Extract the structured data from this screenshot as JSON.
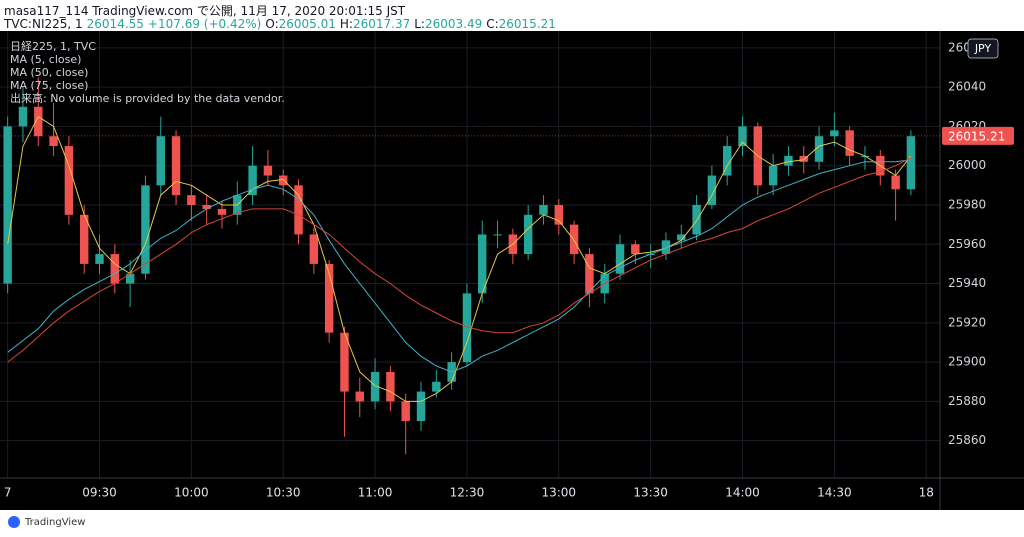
{
  "header": {
    "publisher": "masa117_114 TradingView.com で公開, 11月 17, 2020 20:01:15 JST",
    "symbol": "TVC:NI225, 1",
    "last": 26014.55,
    "change": "+107.69 (+0.42%)",
    "o_label": "O:",
    "open": 26005.01,
    "h_label": "H:",
    "high": 26017.37,
    "l_label": "L:",
    "low": 26003.49,
    "c_label": "C:",
    "close": 26015.21
  },
  "chart_data": {
    "type": "candlestick",
    "symbol_label": "日経225, 1, TVC",
    "volume_note": "出来高: No volume is provided by the data vendor.",
    "currency": "JPY",
    "up_color": "#26a69a",
    "down_color": "#ef5350",
    "open": [
      25940,
      26020,
      26030,
      26015,
      26010,
      25975,
      25950,
      25955,
      25940,
      25945,
      25990,
      26015,
      25985,
      25980,
      25978,
      25975,
      25985,
      26000,
      25995,
      25990,
      25965,
      25950,
      25915,
      25885,
      25880,
      25895,
      25880,
      25870,
      25885,
      25890,
      25900,
      25935,
      25965,
      25965,
      25955,
      25975,
      25980,
      25970,
      25955,
      25935,
      25945,
      25960,
      25955,
      25955,
      25962,
      25965,
      25980,
      25995,
      26010,
      26020,
      25990,
      26000,
      26005,
      26002,
      26015,
      26018,
      26005,
      26005,
      25995,
      25988
    ],
    "high": [
      26025,
      26040,
      26045,
      26032,
      26015,
      25980,
      25965,
      25960,
      25952,
      25995,
      26025,
      26018,
      25990,
      25985,
      25982,
      25992,
      26010,
      26008,
      25998,
      25993,
      25968,
      25952,
      25918,
      25892,
      25902,
      25898,
      25884,
      25890,
      25896,
      25905,
      25940,
      25972,
      25972,
      25968,
      25980,
      25985,
      25983,
      25972,
      25958,
      25950,
      25965,
      25962,
      25960,
      25966,
      25970,
      25985,
      26000,
      26015,
      26025,
      26022,
      26006,
      26010,
      26010,
      26020,
      26027,
      26020,
      26010,
      26008,
      25998,
      26018
    ],
    "low": [
      25935,
      26012,
      26010,
      26005,
      25970,
      25945,
      25945,
      25935,
      25928,
      25942,
      25985,
      25980,
      25972,
      25970,
      25968,
      25970,
      25980,
      25990,
      25985,
      25960,
      25945,
      25910,
      25862,
      25872,
      25876,
      25875,
      25853,
      25865,
      25882,
      25886,
      25898,
      25930,
      25958,
      25950,
      25952,
      25970,
      25965,
      25950,
      25928,
      25930,
      25942,
      25950,
      25948,
      25952,
      25958,
      25962,
      25978,
      25990,
      26005,
      25985,
      25985,
      25995,
      25996,
      25998,
      26010,
      26000,
      25998,
      25990,
      25972,
      25985
    ],
    "close": [
      26020,
      26030,
      26015,
      26010,
      25975,
      25950,
      25955,
      25940,
      25945,
      25990,
      26015,
      25985,
      25980,
      25978,
      25975,
      25985,
      26000,
      25995,
      25990,
      25965,
      25950,
      25915,
      25885,
      25880,
      25895,
      25880,
      25870,
      25885,
      25890,
      25900,
      25935,
      25965,
      25965,
      25955,
      25975,
      25980,
      25970,
      25955,
      25935,
      25945,
      25960,
      25955,
      25955,
      25962,
      25965,
      25980,
      25995,
      26010,
      26020,
      25990,
      26000,
      26005,
      26002,
      26015,
      26018,
      26005,
      26005,
      25995,
      25988,
      26015
    ],
    "series": [
      {
        "name": "MA (5, close)",
        "color": "#e8c547",
        "values": [
          25960,
          26010,
          26025,
          26020,
          26000,
          25975,
          25958,
          25950,
          25945,
          25960,
          25985,
          25992,
          25990,
          25985,
          25980,
          25980,
          25988,
          25992,
          25993,
          25985,
          25970,
          25945,
          25915,
          25895,
          25888,
          25885,
          25880,
          25880,
          25884,
          25890,
          25910,
          25935,
          25955,
          25960,
          25968,
          25975,
          25972,
          25962,
          25948,
          25945,
          25950,
          25955,
          25956,
          25958,
          25962,
          25972,
          25985,
          26000,
          26012,
          26005,
          26000,
          26002,
          26003,
          26010,
          26012,
          26008,
          26005,
          26000,
          25995,
          26005
        ]
      },
      {
        "name": "MA (50, close)",
        "color": "#3fb1c6",
        "values": [
          25905,
          25911,
          25917,
          25926,
          25932,
          25937,
          25941,
          25945,
          25950,
          25957,
          25963,
          25967,
          25973,
          25978,
          25982,
          25985,
          25988,
          25990,
          25988,
          25983,
          25975,
          25962,
          25950,
          25940,
          25930,
          25920,
          25910,
          25903,
          25898,
          25895,
          25898,
          25903,
          25906,
          25910,
          25914,
          25918,
          25922,
          25928,
          25936,
          25944,
          25948,
          25952,
          25955,
          25958,
          25961,
          25964,
          25968,
          25974,
          25980,
          25984,
          25987,
          25990,
          25993,
          25996,
          25998,
          26000,
          26002,
          26002,
          26002,
          26003
        ]
      },
      {
        "name": "MA (75, close)",
        "color": "#d9443a",
        "values": [
          25900,
          25906,
          25913,
          25920,
          25926,
          25931,
          25936,
          25940,
          25945,
          25950,
          25955,
          25960,
          25966,
          25970,
          25973,
          25976,
          25978,
          25978,
          25978,
          25975,
          25970,
          25965,
          25958,
          25951,
          25945,
          25940,
          25934,
          25929,
          25925,
          25921,
          25918,
          25916,
          25915,
          25915,
          25918,
          25920,
          25924,
          25930,
          25935,
          25940,
          25944,
          25948,
          25952,
          25955,
          25958,
          25961,
          25963,
          25966,
          25968,
          25972,
          25975,
          25978,
          25982,
          25986,
          25989,
          25992,
          25995,
          25997,
          26000,
          26004
        ]
      }
    ],
    "ylim": [
      25841,
      26064
    ],
    "yticks": [
      25860,
      25880,
      25900,
      25920,
      25940,
      25960,
      25980,
      26000,
      26020,
      26040,
      26060
    ],
    "xlim": [
      -0.5,
      60.9
    ],
    "xticks": [
      {
        "value": 0,
        "label": "7"
      },
      {
        "value": 6,
        "label": "09:30"
      },
      {
        "value": 12,
        "label": "10:00"
      },
      {
        "value": 18,
        "label": "10:30"
      },
      {
        "value": 24,
        "label": "11:00"
      },
      {
        "value": 30,
        "label": "12:30"
      },
      {
        "value": 36,
        "label": "13:00"
      },
      {
        "value": 42,
        "label": "13:30"
      },
      {
        "value": 48,
        "label": "14:00"
      },
      {
        "value": 54,
        "label": "14:30"
      },
      {
        "value": 60,
        "label": "18"
      }
    ],
    "grid": true
  },
  "footer": {
    "brand": "TradingView"
  }
}
